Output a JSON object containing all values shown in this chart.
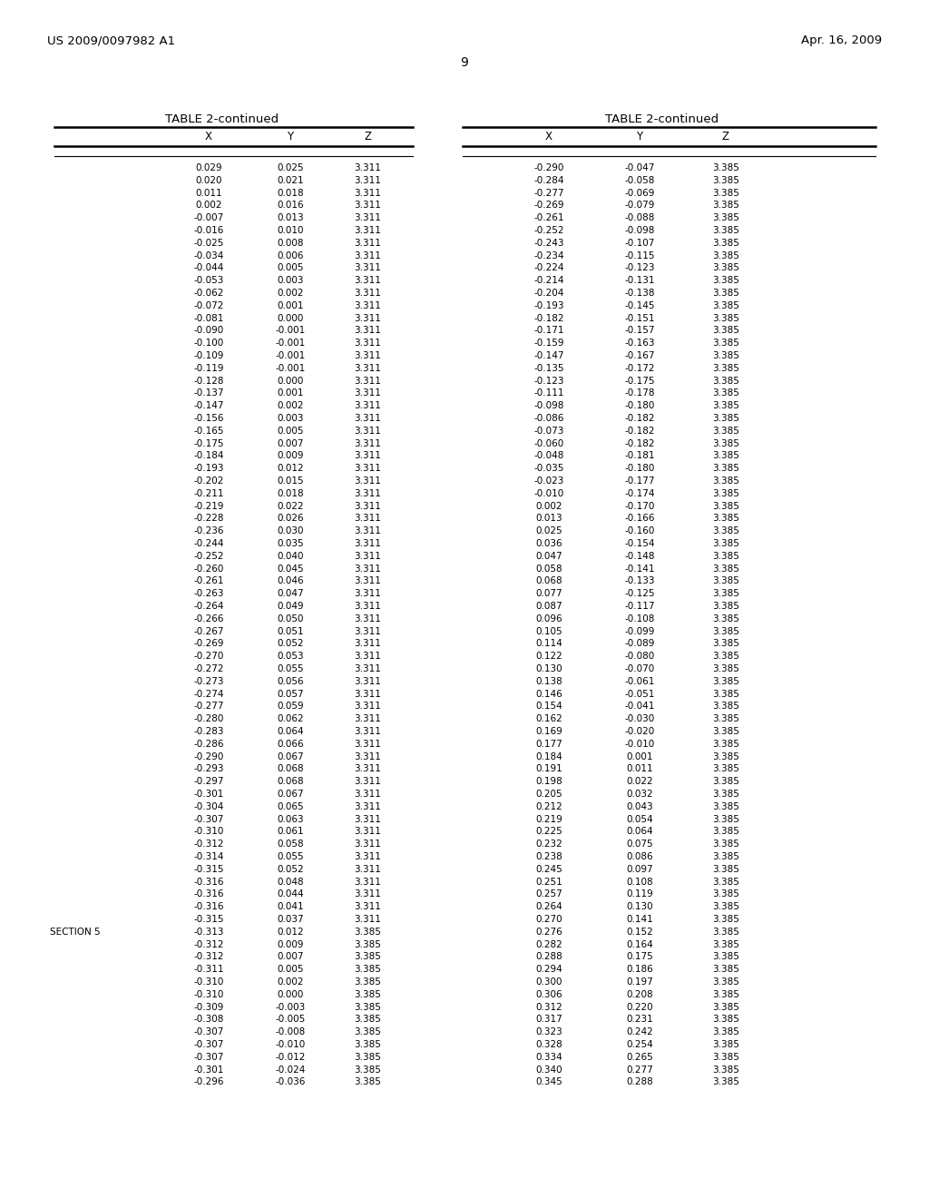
{
  "header_left": "US 2009/0097982 A1",
  "header_right": "Apr. 16, 2009",
  "page_number": "9",
  "table_title": "TABLE 2-continued",
  "col_headers": [
    "X",
    "Y",
    "Z"
  ],
  "left_data": [
    [
      "0.029",
      "0.025",
      "3.311"
    ],
    [
      "0.020",
      "0.021",
      "3.311"
    ],
    [
      "0.011",
      "0.018",
      "3.311"
    ],
    [
      "0.002",
      "0.016",
      "3.311"
    ],
    [
      "-0.007",
      "0.013",
      "3.311"
    ],
    [
      "-0.016",
      "0.010",
      "3.311"
    ],
    [
      "-0.025",
      "0.008",
      "3.311"
    ],
    [
      "-0.034",
      "0.006",
      "3.311"
    ],
    [
      "-0.044",
      "0.005",
      "3.311"
    ],
    [
      "-0.053",
      "0.003",
      "3.311"
    ],
    [
      "-0.062",
      "0.002",
      "3.311"
    ],
    [
      "-0.072",
      "0.001",
      "3.311"
    ],
    [
      "-0.081",
      "0.000",
      "3.311"
    ],
    [
      "-0.090",
      "-0.001",
      "3.311"
    ],
    [
      "-0.100",
      "-0.001",
      "3.311"
    ],
    [
      "-0.109",
      "-0.001",
      "3.311"
    ],
    [
      "-0.119",
      "-0.001",
      "3.311"
    ],
    [
      "-0.128",
      "0.000",
      "3.311"
    ],
    [
      "-0.137",
      "0.001",
      "3.311"
    ],
    [
      "-0.147",
      "0.002",
      "3.311"
    ],
    [
      "-0.156",
      "0.003",
      "3.311"
    ],
    [
      "-0.165",
      "0.005",
      "3.311"
    ],
    [
      "-0.175",
      "0.007",
      "3.311"
    ],
    [
      "-0.184",
      "0.009",
      "3.311"
    ],
    [
      "-0.193",
      "0.012",
      "3.311"
    ],
    [
      "-0.202",
      "0.015",
      "3.311"
    ],
    [
      "-0.211",
      "0.018",
      "3.311"
    ],
    [
      "-0.219",
      "0.022",
      "3.311"
    ],
    [
      "-0.228",
      "0.026",
      "3.311"
    ],
    [
      "-0.236",
      "0.030",
      "3.311"
    ],
    [
      "-0.244",
      "0.035",
      "3.311"
    ],
    [
      "-0.252",
      "0.040",
      "3.311"
    ],
    [
      "-0.260",
      "0.045",
      "3.311"
    ],
    [
      "-0.261",
      "0.046",
      "3.311"
    ],
    [
      "-0.263",
      "0.047",
      "3.311"
    ],
    [
      "-0.264",
      "0.049",
      "3.311"
    ],
    [
      "-0.266",
      "0.050",
      "3.311"
    ],
    [
      "-0.267",
      "0.051",
      "3.311"
    ],
    [
      "-0.269",
      "0.052",
      "3.311"
    ],
    [
      "-0.270",
      "0.053",
      "3.311"
    ],
    [
      "-0.272",
      "0.055",
      "3.311"
    ],
    [
      "-0.273",
      "0.056",
      "3.311"
    ],
    [
      "-0.274",
      "0.057",
      "3.311"
    ],
    [
      "-0.277",
      "0.059",
      "3.311"
    ],
    [
      "-0.280",
      "0.062",
      "3.311"
    ],
    [
      "-0.283",
      "0.064",
      "3.311"
    ],
    [
      "-0.286",
      "0.066",
      "3.311"
    ],
    [
      "-0.290",
      "0.067",
      "3.311"
    ],
    [
      "-0.293",
      "0.068",
      "3.311"
    ],
    [
      "-0.297",
      "0.068",
      "3.311"
    ],
    [
      "-0.301",
      "0.067",
      "3.311"
    ],
    [
      "-0.304",
      "0.065",
      "3.311"
    ],
    [
      "-0.307",
      "0.063",
      "3.311"
    ],
    [
      "-0.310",
      "0.061",
      "3.311"
    ],
    [
      "-0.312",
      "0.058",
      "3.311"
    ],
    [
      "-0.314",
      "0.055",
      "3.311"
    ],
    [
      "-0.315",
      "0.052",
      "3.311"
    ],
    [
      "-0.316",
      "0.048",
      "3.311"
    ],
    [
      "-0.316",
      "0.044",
      "3.311"
    ],
    [
      "-0.316",
      "0.041",
      "3.311"
    ],
    [
      "-0.315",
      "0.037",
      "3.311"
    ],
    [
      "SECTION 5",
      "-0.313",
      "0.012",
      "3.385"
    ],
    [
      "",
      "-0.312",
      "0.009",
      "3.385"
    ],
    [
      "",
      "-0.312",
      "0.007",
      "3.385"
    ],
    [
      "",
      "-0.311",
      "0.005",
      "3.385"
    ],
    [
      "",
      "-0.310",
      "0.002",
      "3.385"
    ],
    [
      "",
      "-0.310",
      "0.000",
      "3.385"
    ],
    [
      "",
      "-0.309",
      "-0.003",
      "3.385"
    ],
    [
      "",
      "-0.308",
      "-0.005",
      "3.385"
    ],
    [
      "",
      "-0.307",
      "-0.008",
      "3.385"
    ],
    [
      "",
      "-0.307",
      "-0.010",
      "3.385"
    ],
    [
      "",
      "-0.307",
      "-0.012",
      "3.385"
    ],
    [
      "",
      "-0.301",
      "-0.024",
      "3.385"
    ],
    [
      "",
      "-0.296",
      "-0.036",
      "3.385"
    ]
  ],
  "right_data": [
    [
      "-0.290",
      "-0.047",
      "3.385"
    ],
    [
      "-0.284",
      "-0.058",
      "3.385"
    ],
    [
      "-0.277",
      "-0.069",
      "3.385"
    ],
    [
      "-0.269",
      "-0.079",
      "3.385"
    ],
    [
      "-0.261",
      "-0.088",
      "3.385"
    ],
    [
      "-0.252",
      "-0.098",
      "3.385"
    ],
    [
      "-0.243",
      "-0.107",
      "3.385"
    ],
    [
      "-0.234",
      "-0.115",
      "3.385"
    ],
    [
      "-0.224",
      "-0.123",
      "3.385"
    ],
    [
      "-0.214",
      "-0.131",
      "3.385"
    ],
    [
      "-0.204",
      "-0.138",
      "3.385"
    ],
    [
      "-0.193",
      "-0.145",
      "3.385"
    ],
    [
      "-0.182",
      "-0.151",
      "3.385"
    ],
    [
      "-0.171",
      "-0.157",
      "3.385"
    ],
    [
      "-0.159",
      "-0.163",
      "3.385"
    ],
    [
      "-0.147",
      "-0.167",
      "3.385"
    ],
    [
      "-0.135",
      "-0.172",
      "3.385"
    ],
    [
      "-0.123",
      "-0.175",
      "3.385"
    ],
    [
      "-0.111",
      "-0.178",
      "3.385"
    ],
    [
      "-0.098",
      "-0.180",
      "3.385"
    ],
    [
      "-0.086",
      "-0.182",
      "3.385"
    ],
    [
      "-0.073",
      "-0.182",
      "3.385"
    ],
    [
      "-0.060",
      "-0.182",
      "3.385"
    ],
    [
      "-0.048",
      "-0.181",
      "3.385"
    ],
    [
      "-0.035",
      "-0.180",
      "3.385"
    ],
    [
      "-0.023",
      "-0.177",
      "3.385"
    ],
    [
      "-0.010",
      "-0.174",
      "3.385"
    ],
    [
      "0.002",
      "-0.170",
      "3.385"
    ],
    [
      "0.013",
      "-0.166",
      "3.385"
    ],
    [
      "0.025",
      "-0.160",
      "3.385"
    ],
    [
      "0.036",
      "-0.154",
      "3.385"
    ],
    [
      "0.047",
      "-0.148",
      "3.385"
    ],
    [
      "0.058",
      "-0.141",
      "3.385"
    ],
    [
      "0.068",
      "-0.133",
      "3.385"
    ],
    [
      "0.077",
      "-0.125",
      "3.385"
    ],
    [
      "0.087",
      "-0.117",
      "3.385"
    ],
    [
      "0.096",
      "-0.108",
      "3.385"
    ],
    [
      "0.105",
      "-0.099",
      "3.385"
    ],
    [
      "0.114",
      "-0.089",
      "3.385"
    ],
    [
      "0.122",
      "-0.080",
      "3.385"
    ],
    [
      "0.130",
      "-0.070",
      "3.385"
    ],
    [
      "0.138",
      "-0.061",
      "3.385"
    ],
    [
      "0.146",
      "-0.051",
      "3.385"
    ],
    [
      "0.154",
      "-0.041",
      "3.385"
    ],
    [
      "0.162",
      "-0.030",
      "3.385"
    ],
    [
      "0.169",
      "-0.020",
      "3.385"
    ],
    [
      "0.177",
      "-0.010",
      "3.385"
    ],
    [
      "0.184",
      "0.001",
      "3.385"
    ],
    [
      "0.191",
      "0.011",
      "3.385"
    ],
    [
      "0.198",
      "0.022",
      "3.385"
    ],
    [
      "0.205",
      "0.032",
      "3.385"
    ],
    [
      "0.212",
      "0.043",
      "3.385"
    ],
    [
      "0.219",
      "0.054",
      "3.385"
    ],
    [
      "0.225",
      "0.064",
      "3.385"
    ],
    [
      "0.232",
      "0.075",
      "3.385"
    ],
    [
      "0.238",
      "0.086",
      "3.385"
    ],
    [
      "0.245",
      "0.097",
      "3.385"
    ],
    [
      "0.251",
      "0.108",
      "3.385"
    ],
    [
      "0.257",
      "0.119",
      "3.385"
    ],
    [
      "0.264",
      "0.130",
      "3.385"
    ],
    [
      "0.270",
      "0.141",
      "3.385"
    ],
    [
      "0.276",
      "0.152",
      "3.385"
    ],
    [
      "0.282",
      "0.164",
      "3.385"
    ],
    [
      "0.288",
      "0.175",
      "3.385"
    ],
    [
      "0.294",
      "0.186",
      "3.385"
    ],
    [
      "0.300",
      "0.197",
      "3.385"
    ],
    [
      "0.306",
      "0.208",
      "3.385"
    ],
    [
      "0.312",
      "0.220",
      "3.385"
    ],
    [
      "0.317",
      "0.231",
      "3.385"
    ],
    [
      "0.323",
      "0.242",
      "3.385"
    ],
    [
      "0.328",
      "0.254",
      "3.385"
    ],
    [
      "0.334",
      "0.265",
      "3.385"
    ],
    [
      "0.340",
      "0.277",
      "3.385"
    ],
    [
      "0.345",
      "0.288",
      "3.385"
    ]
  ],
  "background_color": "#ffffff",
  "font_size": 7.5,
  "font_family": "DejaVu Sans"
}
